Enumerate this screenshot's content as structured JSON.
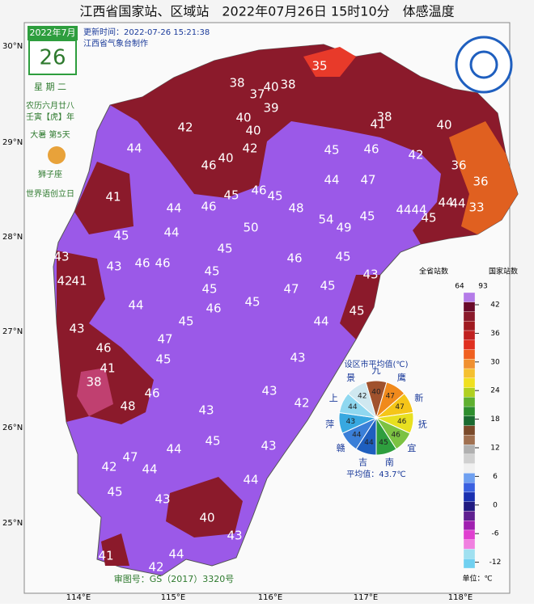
{
  "header": {
    "title": "江西省国家站、区域站　2022年07月26日 15时10分　体感温度",
    "update_time": "更新时间：2022-07-26 15:21:38",
    "maker": "江西省气象台制作"
  },
  "calendar": {
    "month": "2022年7月",
    "day": "26",
    "weekday": "星 期 二",
    "lunar": "农历六月廿八",
    "year_name": "壬寅【虎】年",
    "solar_term": "大暑 第5天",
    "zodiac": "狮子座",
    "event": "世界语创立日"
  },
  "latitude_labels": [
    "30°N",
    "29°N",
    "28°N",
    "27°N",
    "26°N",
    "25°N"
  ],
  "longitude_labels": [
    "114°E",
    "115°E",
    "116°E",
    "117°E",
    "118°E"
  ],
  "stations": [
    35,
    38,
    38,
    40,
    37,
    39,
    40,
    38,
    41,
    40,
    42,
    40,
    44,
    42,
    45,
    46,
    42,
    40,
    46,
    36,
    47,
    44,
    45,
    46,
    45,
    36,
    41,
    44,
    46,
    48,
    44,
    44,
    44,
    44,
    33,
    50,
    54,
    49,
    45,
    45,
    44,
    45,
    45,
    43,
    43,
    46,
    46,
    46,
    45,
    42,
    41,
    45,
    45,
    43,
    47,
    45,
    45,
    44,
    46,
    45,
    45,
    44,
    43,
    47,
    46,
    45,
    43,
    41,
    38,
    43,
    46,
    48,
    42,
    43,
    45,
    43,
    47,
    44,
    44,
    42,
    44,
    45,
    43,
    40,
    43,
    42,
    41,
    44
  ],
  "pie": {
    "title": "设区市平均值(℃)",
    "mean": "平均值：43.7℃",
    "slices": [
      {
        "label": "九",
        "value": 40,
        "color": "#a0522d"
      },
      {
        "label": "鹰",
        "value": 47,
        "color": "#f08a1c"
      },
      {
        "label": "新",
        "value": 47,
        "color": "#f5c518"
      },
      {
        "label": "抚",
        "value": 46,
        "color": "#e8e020"
      },
      {
        "label": "宜",
        "value": 46,
        "color": "#7cc242"
      },
      {
        "label": "南",
        "value": 45,
        "color": "#2e9e3e"
      },
      {
        "label": "吉",
        "value": 44,
        "color": "#1f5fbf"
      },
      {
        "label": "赣",
        "value": 44,
        "color": "#3a7fd8"
      },
      {
        "label": "萍",
        "value": 43,
        "color": "#38a8e0"
      },
      {
        "label": "上",
        "value": 44,
        "color": "#8fd8f0"
      },
      {
        "label": "景",
        "value": 42,
        "color": "#cfe8f0"
      }
    ]
  },
  "legend": {
    "provincial_header": "全省站数",
    "national_header": "国家站数",
    "provincial_count": 64,
    "national_count": 93,
    "ticks": [
      42,
      36,
      30,
      24,
      18,
      12,
      6,
      0,
      -6,
      -12
    ],
    "unit": "单位：℃"
  },
  "approval": "审图号：GS（2017）3320号"
}
